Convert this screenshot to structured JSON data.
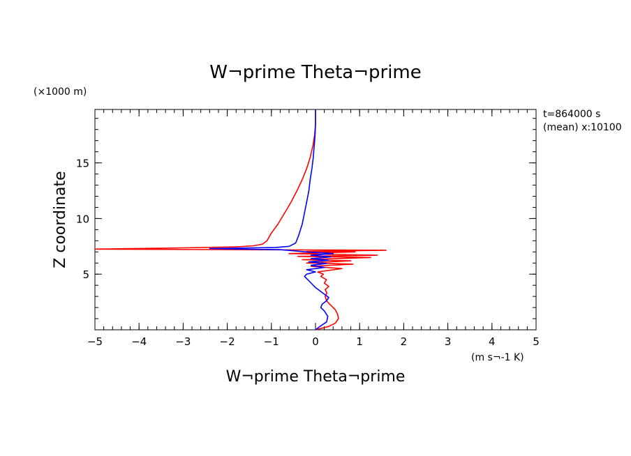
{
  "chart_data": {
    "type": "line",
    "title": "W¬prime Theta¬prime",
    "xlabel": "W¬prime Theta¬prime",
    "x_units": "(m s¬-1 K)",
    "ylabel": "Z coordinate",
    "y_units": "(×1000 m)",
    "info_time": "t=864000 s",
    "info_mean": "(mean) x:10100",
    "xlim": [
      -5,
      5
    ],
    "ylim": [
      0,
      19.8
    ],
    "x_ticks": [
      "−5",
      "−4",
      "−3",
      "−2",
      "−1",
      "0",
      "1",
      "2",
      "3",
      "4",
      "5"
    ],
    "x_tick_values": [
      -5,
      -4,
      -3,
      -2,
      -1,
      0,
      1,
      2,
      3,
      4,
      5
    ],
    "y_ticks": [
      "5",
      "10",
      "15"
    ],
    "y_tick_values": [
      5,
      10,
      15
    ],
    "grid": false,
    "series": [
      {
        "color": "#ff0000",
        "points": [
          [
            0.0,
            0.0
          ],
          [
            0.3,
            0.3
          ],
          [
            0.45,
            0.6
          ],
          [
            0.52,
            1.0
          ],
          [
            0.5,
            1.4
          ],
          [
            0.45,
            1.8
          ],
          [
            0.35,
            2.2
          ],
          [
            0.25,
            2.6
          ],
          [
            0.22,
            3.0
          ],
          [
            0.26,
            3.3
          ],
          [
            0.22,
            3.6
          ],
          [
            0.3,
            3.9
          ],
          [
            0.2,
            4.2
          ],
          [
            0.25,
            4.5
          ],
          [
            0.12,
            4.8
          ],
          [
            0.18,
            5.0
          ],
          [
            0.05,
            5.2
          ],
          [
            0.6,
            5.5
          ],
          [
            -0.1,
            5.7
          ],
          [
            0.85,
            5.9
          ],
          [
            -0.2,
            6.0
          ],
          [
            0.8,
            6.2
          ],
          [
            -0.3,
            6.3
          ],
          [
            1.25,
            6.5
          ],
          [
            -0.4,
            6.6
          ],
          [
            1.4,
            6.7
          ],
          [
            -0.6,
            6.85
          ],
          [
            0.9,
            7.0
          ],
          [
            -0.2,
            7.05
          ],
          [
            1.6,
            7.15
          ],
          [
            -5.0,
            7.25
          ],
          [
            -3.2,
            7.35
          ],
          [
            -1.8,
            7.45
          ],
          [
            -1.4,
            7.55
          ],
          [
            -1.2,
            7.7
          ],
          [
            -1.1,
            8.0
          ],
          [
            -1.0,
            8.7
          ],
          [
            -0.85,
            9.5
          ],
          [
            -0.7,
            10.5
          ],
          [
            -0.55,
            11.5
          ],
          [
            -0.42,
            12.5
          ],
          [
            -0.3,
            13.5
          ],
          [
            -0.2,
            14.5
          ],
          [
            -0.12,
            15.5
          ],
          [
            -0.06,
            16.5
          ],
          [
            -0.02,
            17.5
          ],
          [
            0.0,
            18.5
          ],
          [
            0.0,
            19.8
          ]
        ]
      },
      {
        "color": "#0000ff",
        "points": [
          [
            0.0,
            0.0
          ],
          [
            0.1,
            0.3
          ],
          [
            0.25,
            0.7
          ],
          [
            0.28,
            1.2
          ],
          [
            0.2,
            1.7
          ],
          [
            0.12,
            2.0
          ],
          [
            0.15,
            2.3
          ],
          [
            0.25,
            2.6
          ],
          [
            0.3,
            2.9
          ],
          [
            0.2,
            3.2
          ],
          [
            0.1,
            3.5
          ],
          [
            0.0,
            3.8
          ],
          [
            -0.1,
            4.2
          ],
          [
            -0.2,
            4.6
          ],
          [
            -0.25,
            4.8
          ],
          [
            -0.2,
            5.0
          ],
          [
            0.0,
            5.2
          ],
          [
            -0.2,
            5.4
          ],
          [
            0.2,
            5.6
          ],
          [
            -0.1,
            5.8
          ],
          [
            0.25,
            5.95
          ],
          [
            -0.15,
            6.1
          ],
          [
            0.3,
            6.25
          ],
          [
            -0.1,
            6.4
          ],
          [
            0.35,
            6.55
          ],
          [
            -0.1,
            6.7
          ],
          [
            0.4,
            6.85
          ],
          [
            -0.2,
            7.0
          ],
          [
            -0.8,
            7.2
          ],
          [
            -2.4,
            7.3
          ],
          [
            -0.9,
            7.4
          ],
          [
            -0.6,
            7.5
          ],
          [
            -0.45,
            7.8
          ],
          [
            -0.38,
            8.5
          ],
          [
            -0.3,
            9.5
          ],
          [
            -0.25,
            10.5
          ],
          [
            -0.2,
            11.5
          ],
          [
            -0.15,
            12.5
          ],
          [
            -0.12,
            13.5
          ],
          [
            -0.08,
            14.5
          ],
          [
            -0.05,
            15.5
          ],
          [
            -0.03,
            16.5
          ],
          [
            -0.01,
            17.5
          ],
          [
            0.0,
            18.5
          ],
          [
            0.0,
            19.8
          ]
        ]
      }
    ]
  }
}
